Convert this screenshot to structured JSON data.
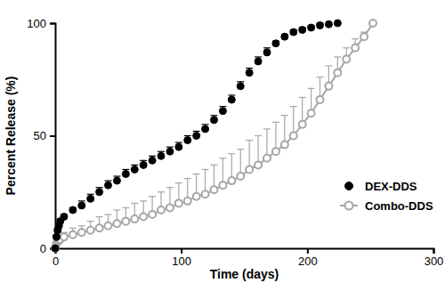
{
  "chart_data": {
    "type": "line",
    "x_label": "Time (days)",
    "y_label": "Percent Release (%)",
    "xlim": [
      0,
      300
    ],
    "xticks": [
      0,
      100,
      200,
      300
    ],
    "ylim": [
      0,
      100
    ],
    "yticks": [
      0,
      50,
      100
    ],
    "grid": false,
    "legend": "bottom-right",
    "series": [
      {
        "name": "DEX-DDS",
        "color": "#000000",
        "marker": "circle",
        "line_style": "none",
        "x": [
          0,
          1,
          2,
          3,
          4,
          7,
          14,
          21,
          28,
          35,
          42,
          49,
          56,
          63,
          70,
          77,
          84,
          91,
          98,
          105,
          112,
          119,
          126,
          133,
          140,
          147,
          154,
          161,
          168,
          175,
          182,
          189,
          196,
          203,
          210,
          217,
          224
        ],
        "values": [
          0,
          5,
          8,
          10,
          12,
          14,
          17,
          19,
          22,
          25,
          28,
          30,
          33,
          35,
          37,
          39,
          41,
          43,
          45,
          48,
          50,
          53,
          57,
          61,
          66,
          72,
          78,
          83,
          87,
          91,
          94,
          96,
          97,
          98,
          99,
          99.5,
          100
        ],
        "errors": [
          0,
          1,
          1,
          1,
          1,
          1,
          1,
          2,
          2,
          2,
          2,
          2,
          2,
          2,
          2,
          2,
          2,
          2,
          2,
          2,
          2,
          2,
          2,
          2,
          2,
          2,
          2,
          2,
          2,
          1,
          1,
          1,
          1,
          1,
          1,
          0,
          0
        ]
      },
      {
        "name": "Combo-DDS",
        "color": "#a6a6a6",
        "marker": "open-circle",
        "line_style": "solid",
        "x": [
          0,
          1,
          2,
          3,
          4,
          7,
          14,
          21,
          28,
          35,
          42,
          49,
          56,
          63,
          70,
          77,
          84,
          91,
          98,
          105,
          112,
          119,
          126,
          133,
          140,
          147,
          154,
          161,
          168,
          175,
          182,
          189,
          196,
          203,
          210,
          217,
          224,
          231,
          238,
          245,
          252
        ],
        "values": [
          0,
          2,
          3,
          3.5,
          4,
          5,
          6,
          7,
          8,
          9,
          10,
          11,
          12,
          13,
          14,
          15,
          17,
          18,
          20,
          21,
          23,
          24,
          26,
          28,
          30,
          32,
          35,
          37,
          40,
          43,
          46,
          50,
          55,
          60,
          66,
          72,
          78,
          84,
          89,
          94,
          100
        ],
        "errors": [
          0,
          1,
          1,
          1,
          1,
          2,
          3,
          3,
          4,
          5,
          5,
          6,
          6,
          7,
          7,
          8,
          8,
          9,
          9,
          10,
          10,
          11,
          11,
          12,
          12,
          12,
          13,
          13,
          13,
          13,
          13,
          13,
          12,
          11,
          10,
          9,
          7,
          5,
          4,
          2,
          0
        ]
      }
    ]
  }
}
